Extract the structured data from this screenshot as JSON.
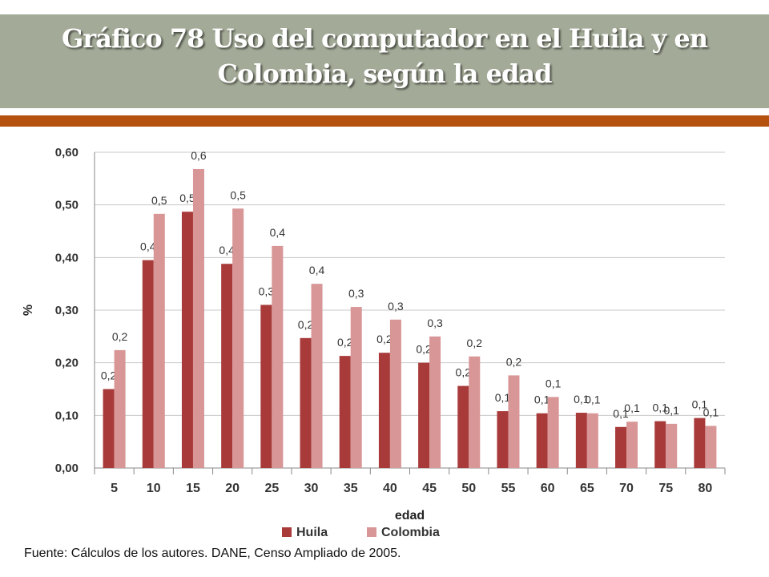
{
  "header": {
    "title_line1": "Gráfico 78 Uso del computador en el Huila y en",
    "title_line2": "Colombia, según la edad"
  },
  "source": "Fuente: Cálculos de los autores. DANE, Censo Ampliado de 2005.",
  "colors": {
    "band": "#a3aa97",
    "accent": "#b5520f",
    "huila": "#a83a3a",
    "colombia": "#d89696"
  },
  "chart_data": {
    "type": "bar",
    "title": "",
    "xlabel": "edad",
    "ylabel": "%",
    "ylim": [
      0,
      0.6
    ],
    "yticks": [
      "0,00",
      "0,10",
      "0,20",
      "0,30",
      "0,40",
      "0,50",
      "0,60"
    ],
    "grid": true,
    "legend_position": "bottom",
    "categories": [
      "5",
      "10",
      "15",
      "20",
      "25",
      "30",
      "35",
      "40",
      "45",
      "50",
      "55",
      "60",
      "65",
      "70",
      "75",
      "80"
    ],
    "series": [
      {
        "name": "Huila",
        "values": [
          0.15,
          0.395,
          0.487,
          0.388,
          0.31,
          0.247,
          0.213,
          0.219,
          0.2,
          0.156,
          0.108,
          0.104,
          0.105,
          0.078,
          0.089,
          0.095
        ],
        "labels": [
          "0,2",
          "0,4",
          "0,5",
          "0,4",
          "0,3",
          "0,2",
          "0,2",
          "0,2",
          "0,2",
          "0,2",
          "0,1",
          "0,1",
          "0,1",
          "0,1",
          "0,1",
          "0,1"
        ]
      },
      {
        "name": "Colombia",
        "values": [
          0.224,
          0.483,
          0.568,
          0.493,
          0.422,
          0.35,
          0.306,
          0.282,
          0.25,
          0.212,
          0.176,
          0.135,
          0.104,
          0.088,
          0.084,
          0.08
        ],
        "labels": [
          "0,2",
          "0,5",
          "0,6",
          "0,5",
          "0,4",
          "0,4",
          "0,3",
          "0,3",
          "0,3",
          "0,2",
          "0,2",
          "0,1",
          "0,1",
          "0,1",
          "0,1",
          "0,1"
        ]
      }
    ]
  }
}
